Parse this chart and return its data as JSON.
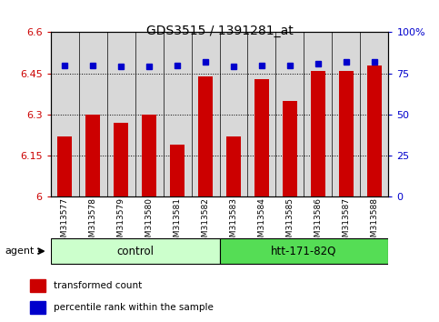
{
  "title": "GDS3515 / 1391281_at",
  "samples": [
    "GSM313577",
    "GSM313578",
    "GSM313579",
    "GSM313580",
    "GSM313581",
    "GSM313582",
    "GSM313583",
    "GSM313584",
    "GSM313585",
    "GSM313586",
    "GSM313587",
    "GSM313588"
  ],
  "bar_values": [
    6.22,
    6.3,
    6.27,
    6.3,
    6.19,
    6.44,
    6.22,
    6.43,
    6.35,
    6.46,
    6.46,
    6.48
  ],
  "dot_values": [
    80,
    80,
    79,
    79,
    80,
    82,
    79,
    80,
    80,
    81,
    82,
    82
  ],
  "bar_color": "#cc0000",
  "dot_color": "#0000cc",
  "ylim_left": [
    6.0,
    6.6
  ],
  "ylim_right": [
    0,
    100
  ],
  "yticks_left": [
    6.0,
    6.15,
    6.3,
    6.45,
    6.6
  ],
  "ytick_labels_left": [
    "6",
    "6.15",
    "6.3",
    "6.45",
    "6.6"
  ],
  "yticks_right": [
    0,
    25,
    50,
    75,
    100
  ],
  "ytick_labels_right": [
    "0",
    "25",
    "50",
    "75",
    "100%"
  ],
  "groups": [
    {
      "label": "control",
      "start": 0,
      "end": 5,
      "color": "#ccffcc",
      "edge_color": "#aaddaa"
    },
    {
      "label": "htt-171-82Q",
      "start": 6,
      "end": 11,
      "color": "#55dd55",
      "edge_color": "#33bb33"
    }
  ],
  "agent_label": "agent",
  "legend_items": [
    {
      "color": "#cc0000",
      "label": "transformed count"
    },
    {
      "color": "#0000cc",
      "label": "percentile rank within the sample"
    }
  ],
  "bar_bottom": 6.0,
  "col_bg_color": "#d8d8d8",
  "plot_bg": "#ffffff"
}
